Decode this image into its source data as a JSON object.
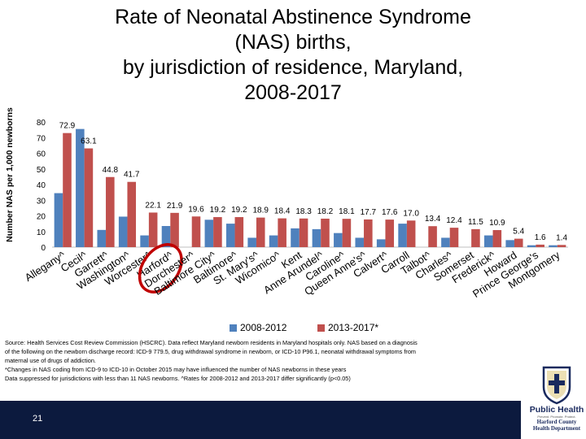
{
  "title_lines": [
    "Rate of Neonatal Abstinence Syndrome",
    "(NAS) births,",
    "by jurisdiction of residence, Maryland,",
    "2008-2017"
  ],
  "page_number": "21",
  "source_lines": [
    "Source: Health Services Cost Review Commission (HSCRC). Data reflect Maryland newborn residents in Maryland hospitals only. NAS  based on a diagnosis",
    "of the following on the newborn discharge record: ICD-9 779.5, drug withdrawal syndrome in newborn, or ICD-10 P96.1, neonatal withdrawal symptoms from",
    "maternal use of drugs of addiction.",
    "*Changes in NAS coding from ICD-9 to ICD-10 in October 2015 may have influenced the number of NAS newborns in these years",
    "Data suppressed for jurisdictions with less than 11 NAS newborns. ^Rates for 2008-2012 and 2013-2017 differ significantly (p<0.05)"
  ],
  "logo": {
    "line1": "Public Health",
    "line2": "Prevent. Promote. Protect.",
    "line3": "Harford County",
    "line4": "Health Department"
  },
  "highlight": {
    "target": "Harford^",
    "color": "#c00000"
  },
  "colors": {
    "series1": "#4f81bd",
    "series2": "#c0504d",
    "footer": "#0c1a3e"
  },
  "chart_data": {
    "type": "bar",
    "title": "Rate of Neonatal Abstinence Syndrome (NAS) births, by jurisdiction of residence, Maryland, 2008-2017",
    "xlabel": "",
    "ylabel": "Number NAS per 1,000 newborns",
    "ylim": [
      0,
      80
    ],
    "yticks": [
      0,
      10,
      20,
      30,
      40,
      50,
      60,
      70,
      80
    ],
    "grid": false,
    "legend_position": "bottom",
    "categories": [
      "Allegany^",
      "Cecil^",
      "Garrett^",
      "Washington^",
      "Worcester^",
      "Harford^",
      "Dorchester^",
      "Baltimore City^",
      "Baltimore^",
      "St. Mary's^",
      "Wicomico^",
      "Kent",
      "Anne Arundel^",
      "Caroline^",
      "Queen Anne's^",
      "Calvert^",
      "Carroll",
      "Talbot^",
      "Charles^",
      "Somerset",
      "Frederick^",
      "Howard",
      "Prince George's",
      "Montgomery"
    ],
    "series": [
      {
        "name": "2008-2012",
        "values": [
          34.5,
          75.5,
          11.0,
          19.5,
          7.5,
          13.5,
          null,
          17.5,
          15.0,
          6.0,
          7.5,
          12.0,
          11.5,
          9.0,
          6.0,
          5.0,
          15.0,
          null,
          6.0,
          null,
          7.5,
          4.5,
          1.2,
          1.2
        ]
      },
      {
        "name": "2013-2017*",
        "values": [
          72.9,
          63.1,
          44.8,
          41.7,
          22.1,
          21.9,
          19.6,
          19.2,
          19.2,
          18.9,
          18.4,
          18.3,
          18.2,
          18.1,
          17.7,
          17.6,
          17.0,
          13.4,
          12.4,
          11.5,
          10.9,
          5.4,
          1.6,
          1.4
        ]
      }
    ],
    "data_labels": [
      "72.9",
      "63.1",
      "44.8",
      "41.7",
      "22.1",
      "21.9",
      "19.6",
      "19.2",
      "19.2",
      "18.9",
      "18.4",
      "18.3",
      "18.2",
      "18.1",
      "17.7",
      "17.6",
      "17.0",
      "13.4",
      "12.4",
      "11.5",
      "10.9",
      "5.4",
      "1.6",
      "1.4"
    ]
  }
}
